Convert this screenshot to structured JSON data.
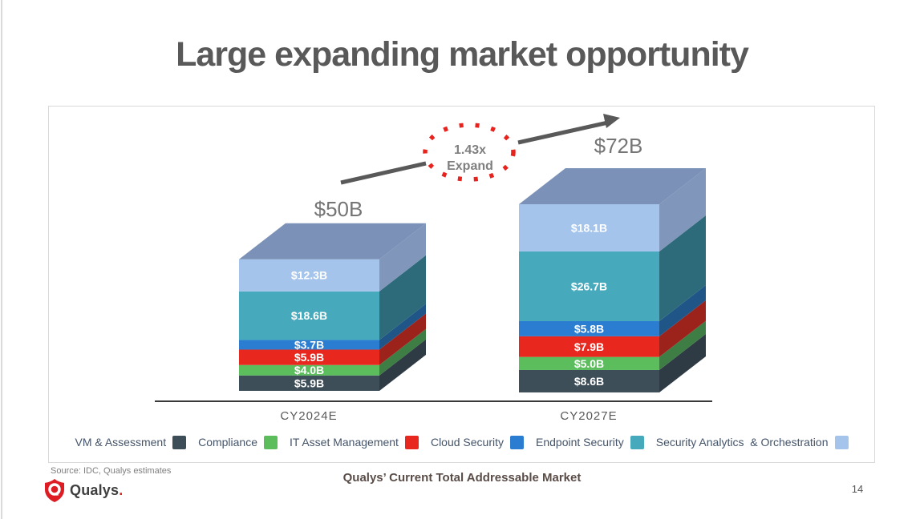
{
  "slide": {
    "title": "Large expanding market opportunity",
    "footer_title": "Qualys’ Current Total Addressable Market",
    "source": "Source: IDC, Qualys estimates",
    "page_number": "14",
    "logo_text": "Qualys",
    "logo_period": "."
  },
  "annotation": {
    "multiplier_line1": "1.43x",
    "multiplier_line2": "Expand"
  },
  "colors": {
    "accent_red": "#e8231e",
    "title_gray": "#595959",
    "arrow_gray": "#595959",
    "axis_dark": "#3a3a3a",
    "totals_gray": "#757575",
    "annotation_gray": "#7f7f7f",
    "legend_text": "#44546a",
    "box_border": "#d9d9d9",
    "footer_maroon": "#5a4d48",
    "logo_red": "#dd1c23",
    "top_face": "#7b91b7"
  },
  "chart_data": {
    "type": "bar",
    "subtype": "3d-stacked-column",
    "title": "Qualys’ Current Total Addressable Market",
    "categories": [
      "CY2024E",
      "CY2027E"
    ],
    "totals": [
      50,
      72
    ],
    "totals_label": [
      "$50B",
      "$72B"
    ],
    "expansion_note": "1.43x Expand",
    "legend_position": "bottom",
    "top_face_color": "#7b91b7",
    "series": [
      {
        "name": "VM & Assessment",
        "values": [
          5.9,
          8.6
        ],
        "labels": [
          "$5.9B",
          "$8.6B"
        ],
        "color": "#3e4e58",
        "side_color": "#2e3b44"
      },
      {
        "name": "Compliance",
        "values": [
          4.0,
          5.0
        ],
        "labels": [
          "$4.0B",
          "$5.0B"
        ],
        "color": "#5cbd5d",
        "side_color": "#3e7d44"
      },
      {
        "name": "IT Asset Management",
        "values": [
          5.9,
          7.9
        ],
        "labels": [
          "$5.9B",
          "$7.9B"
        ],
        "color": "#e8281e",
        "side_color": "#9c231c"
      },
      {
        "name": "Cloud Security",
        "values": [
          3.7,
          5.8
        ],
        "labels": [
          "$3.7B",
          "$5.8B"
        ],
        "color": "#2a7dd1",
        "side_color": "#1f5687"
      },
      {
        "name": "Endpoint Security",
        "values": [
          18.6,
          26.7
        ],
        "labels": [
          "$18.6B",
          "$26.7B"
        ],
        "color": "#47aabc",
        "side_color": "#2e6b7a"
      },
      {
        "name": "Security Analytics  & Orchestration",
        "values": [
          12.3,
          18.1
        ],
        "labels": [
          "$12.3B",
          "$18.1B"
        ],
        "color": "#a5c4ec",
        "side_color": "#8096bb"
      }
    ]
  }
}
